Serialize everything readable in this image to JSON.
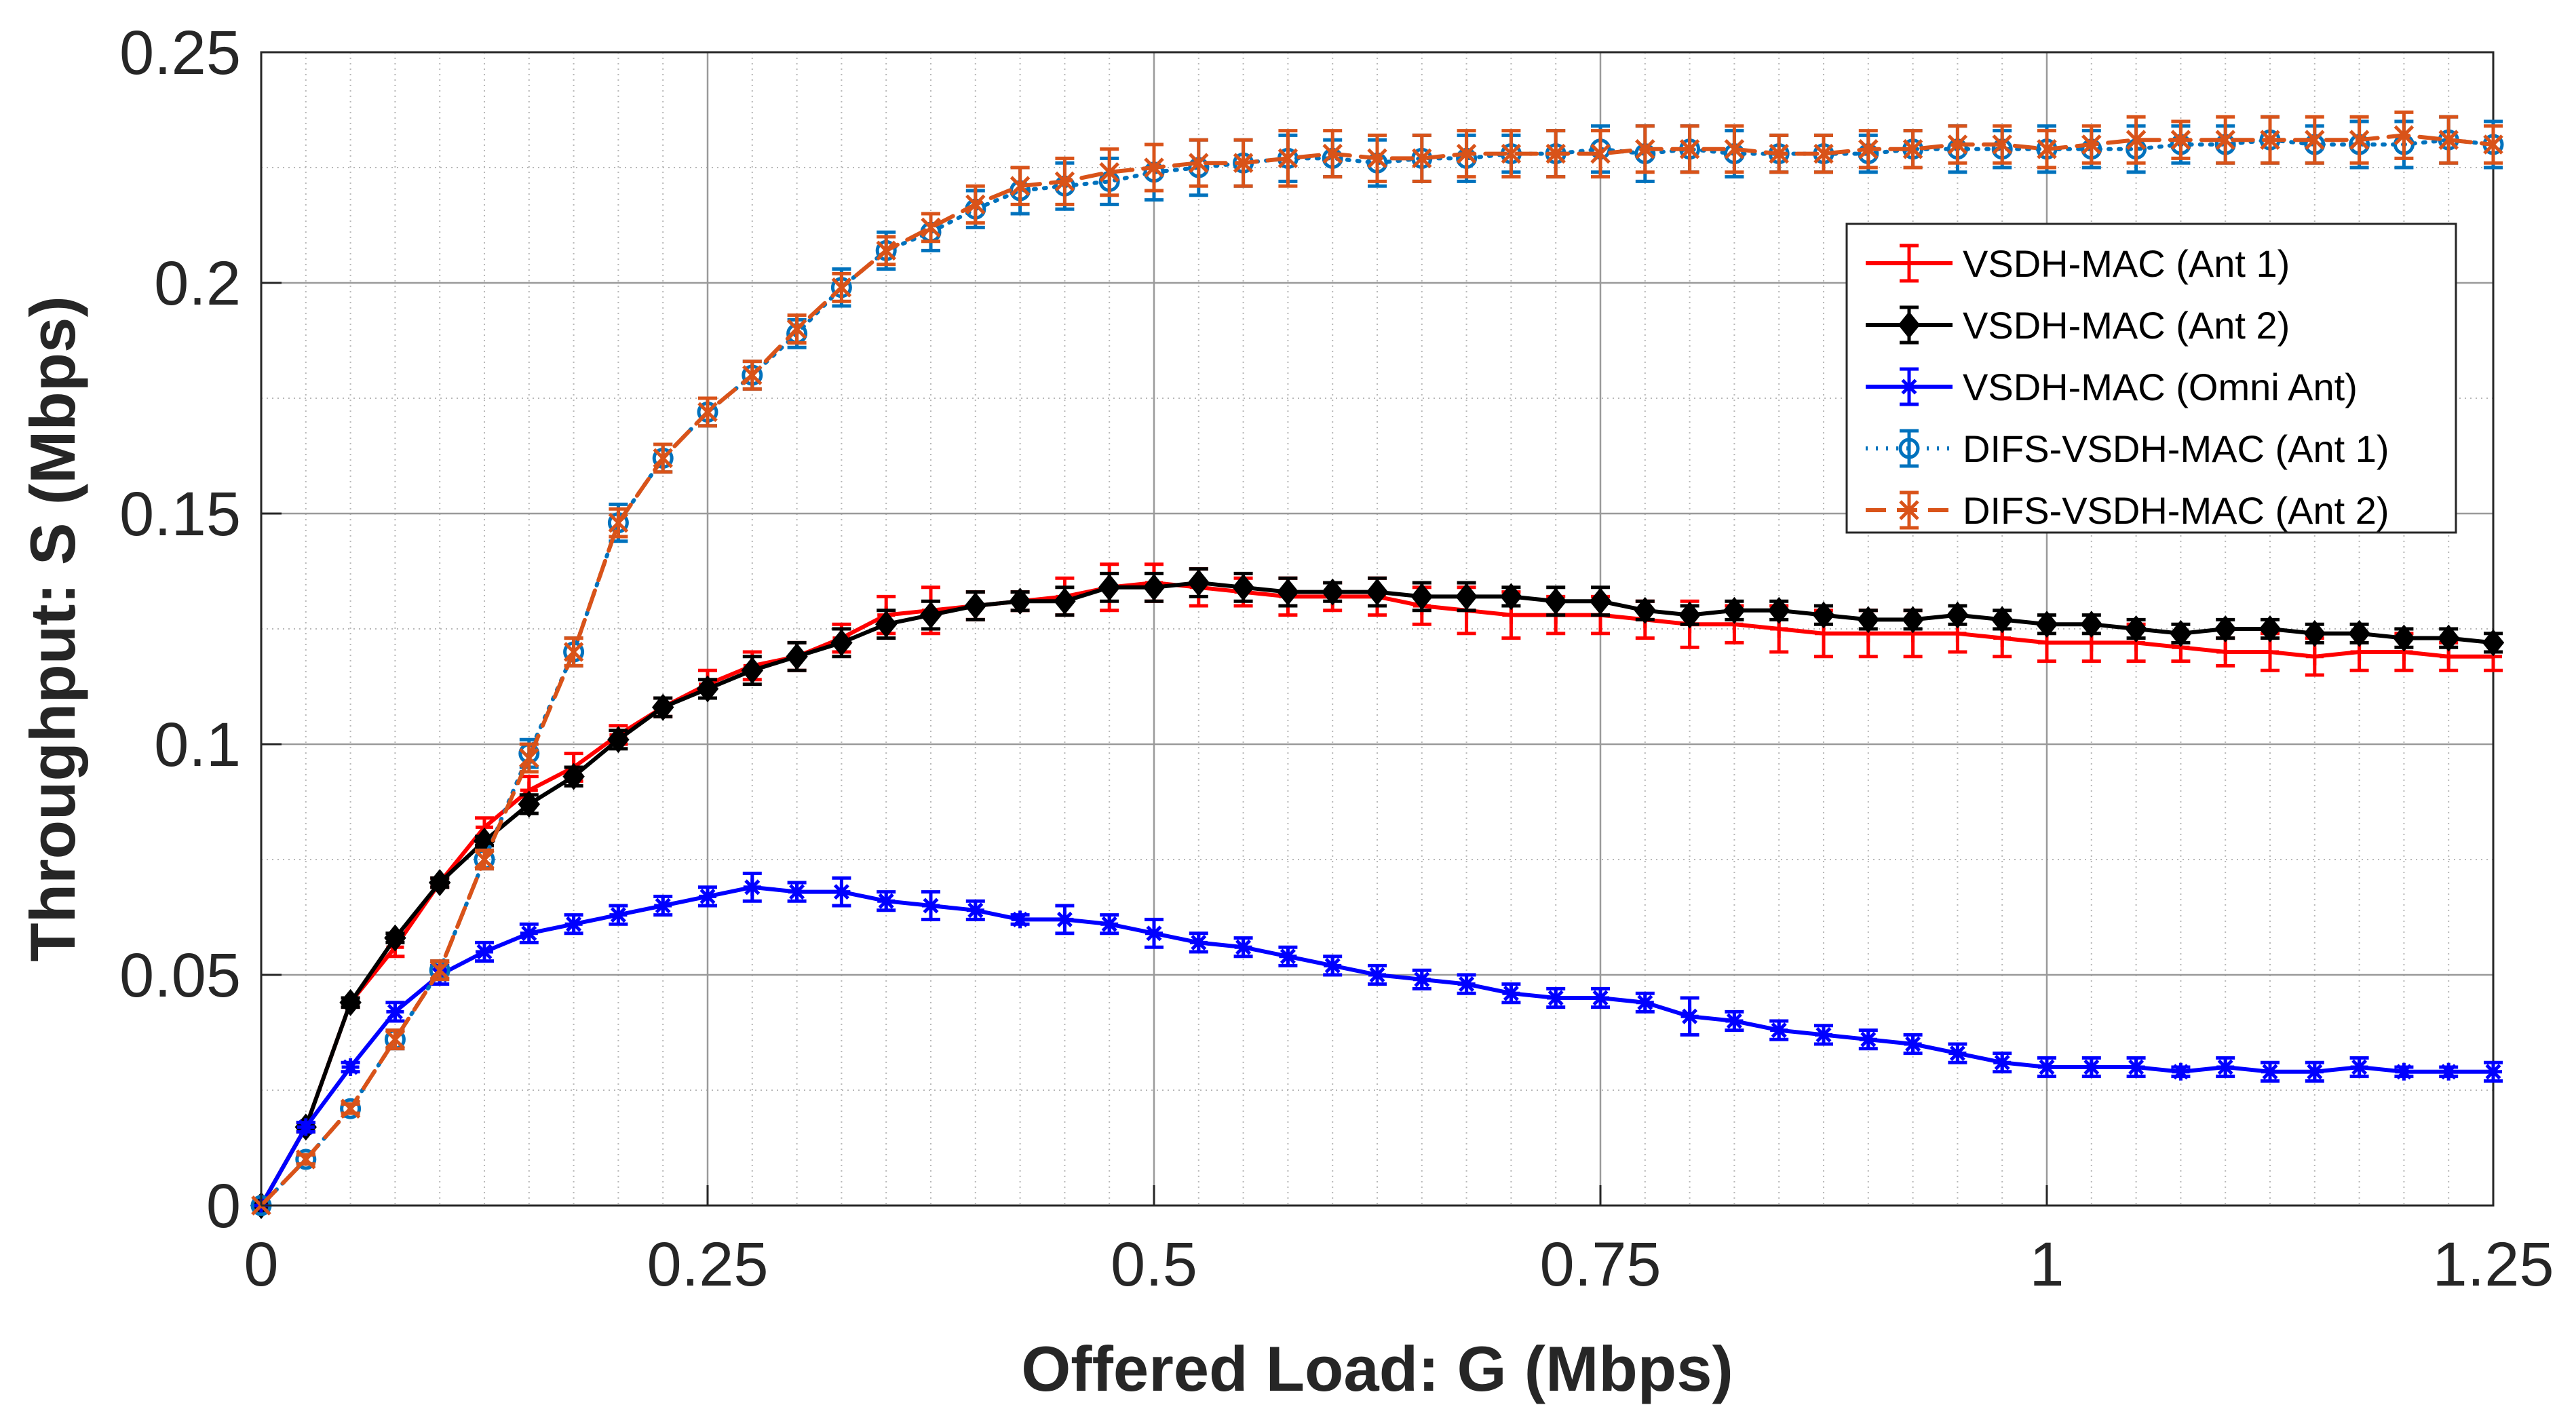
{
  "chart_data": {
    "type": "line",
    "title": "",
    "xlabel": "Offered Load: G (Mbps)",
    "ylabel": "Throughput: S (Mbps)",
    "xlim": [
      0,
      1.25
    ],
    "ylim": [
      0,
      0.25
    ],
    "grid": true,
    "minor_grid": true,
    "xticks": [
      0,
      0.25,
      0.5,
      0.75,
      1,
      1.25
    ],
    "xtick_labels": [
      "0",
      "0.25",
      "0.5",
      "0.75",
      "1",
      "1.25"
    ],
    "yticks": [
      0,
      0.05,
      0.1,
      0.15,
      0.2,
      0.25
    ],
    "ytick_labels": [
      "0",
      "0.05",
      "0.1",
      "0.15",
      "0.2",
      "0.25"
    ],
    "legend_position": "top-right",
    "x": [
      0,
      0.025,
      0.05,
      0.075,
      0.1,
      0.125,
      0.15,
      0.175,
      0.2,
      0.225,
      0.25,
      0.275,
      0.3,
      0.325,
      0.35,
      0.375,
      0.4,
      0.425,
      0.45,
      0.475,
      0.5,
      0.525,
      0.55,
      0.575,
      0.6,
      0.625,
      0.65,
      0.675,
      0.7,
      0.725,
      0.75,
      0.775,
      0.8,
      0.825,
      0.85,
      0.875,
      0.9,
      0.925,
      0.95,
      0.975,
      1.0,
      1.025,
      1.05,
      1.075,
      1.1,
      1.125,
      1.15,
      1.175,
      1.2,
      1.225,
      1.25
    ],
    "series": [
      {
        "name": "VSDH-MAC (Ant 1)",
        "color": "#ff0000",
        "line_style": "solid",
        "marker": "plus",
        "values": [
          0,
          0.017,
          0.044,
          0.056,
          0.07,
          0.082,
          0.09,
          0.095,
          0.102,
          0.108,
          0.113,
          0.117,
          0.119,
          0.123,
          0.128,
          0.129,
          0.13,
          0.131,
          0.132,
          0.134,
          0.135,
          0.134,
          0.133,
          0.132,
          0.132,
          0.132,
          0.13,
          0.129,
          0.128,
          0.128,
          0.128,
          0.127,
          0.126,
          0.126,
          0.125,
          0.124,
          0.124,
          0.124,
          0.124,
          0.123,
          0.122,
          0.122,
          0.122,
          0.121,
          0.12,
          0.12,
          0.119,
          0.12,
          0.12,
          0.119,
          0.119
        ],
        "errors": [
          0,
          0.001,
          0.001,
          0.002,
          0.001,
          0.002,
          0.003,
          0.003,
          0.002,
          0.002,
          0.003,
          0.003,
          0.003,
          0.003,
          0.004,
          0.005,
          0.003,
          0.002,
          0.004,
          0.005,
          0.004,
          0.004,
          0.003,
          0.004,
          0.003,
          0.004,
          0.004,
          0.005,
          0.005,
          0.004,
          0.004,
          0.004,
          0.005,
          0.004,
          0.005,
          0.005,
          0.005,
          0.005,
          0.004,
          0.004,
          0.004,
          0.004,
          0.004,
          0.003,
          0.003,
          0.004,
          0.004,
          0.004,
          0.004,
          0.003,
          0.003
        ]
      },
      {
        "name": "VSDH-MAC (Ant 2)",
        "color": "#000000",
        "line_style": "solid",
        "marker": "diamond",
        "values": [
          0,
          0.017,
          0.044,
          0.058,
          0.07,
          0.079,
          0.087,
          0.093,
          0.101,
          0.108,
          0.112,
          0.116,
          0.119,
          0.122,
          0.126,
          0.128,
          0.13,
          0.131,
          0.131,
          0.134,
          0.134,
          0.135,
          0.134,
          0.133,
          0.133,
          0.133,
          0.132,
          0.132,
          0.132,
          0.131,
          0.131,
          0.129,
          0.128,
          0.129,
          0.129,
          0.128,
          0.127,
          0.127,
          0.128,
          0.127,
          0.126,
          0.126,
          0.125,
          0.124,
          0.125,
          0.125,
          0.124,
          0.124,
          0.123,
          0.123,
          0.122
        ],
        "errors": [
          0,
          0.001,
          0.001,
          0.001,
          0.001,
          0.001,
          0.002,
          0.002,
          0.002,
          0.002,
          0.002,
          0.003,
          0.003,
          0.003,
          0.003,
          0.003,
          0.003,
          0.002,
          0.003,
          0.003,
          0.003,
          0.003,
          0.003,
          0.003,
          0.002,
          0.003,
          0.003,
          0.003,
          0.002,
          0.003,
          0.003,
          0.002,
          0.002,
          0.002,
          0.002,
          0.002,
          0.002,
          0.002,
          0.002,
          0.002,
          0.002,
          0.002,
          0.002,
          0.002,
          0.002,
          0.002,
          0.002,
          0.002,
          0.002,
          0.002,
          0.002
        ]
      },
      {
        "name": "VSDH-MAC (Omni Ant)",
        "color": "#0000ff",
        "line_style": "solid",
        "marker": "star",
        "values": [
          0,
          0.017,
          0.03,
          0.042,
          0.05,
          0.055,
          0.059,
          0.061,
          0.063,
          0.065,
          0.067,
          0.069,
          0.068,
          0.068,
          0.066,
          0.065,
          0.064,
          0.062,
          0.062,
          0.061,
          0.059,
          0.057,
          0.056,
          0.054,
          0.052,
          0.05,
          0.049,
          0.048,
          0.046,
          0.045,
          0.045,
          0.044,
          0.041,
          0.04,
          0.038,
          0.037,
          0.036,
          0.035,
          0.033,
          0.031,
          0.03,
          0.03,
          0.03,
          0.029,
          0.03,
          0.029,
          0.029,
          0.03,
          0.029,
          0.029,
          0.029
        ],
        "errors": [
          0,
          0.001,
          0.001,
          0.002,
          0.002,
          0.002,
          0.002,
          0.002,
          0.002,
          0.002,
          0.002,
          0.003,
          0.002,
          0.003,
          0.002,
          0.003,
          0.002,
          0.001,
          0.003,
          0.002,
          0.003,
          0.002,
          0.002,
          0.002,
          0.002,
          0.002,
          0.002,
          0.002,
          0.002,
          0.002,
          0.002,
          0.002,
          0.004,
          0.002,
          0.002,
          0.002,
          0.002,
          0.002,
          0.002,
          0.002,
          0.002,
          0.002,
          0.002,
          0.001,
          0.002,
          0.002,
          0.002,
          0.002,
          0.001,
          0.001,
          0.002
        ]
      },
      {
        "name": "DIFS-VSDH-MAC (Ant 1)",
        "color": "#0072bd",
        "line_style": "dotted",
        "marker": "circle",
        "values": [
          0,
          0.01,
          0.021,
          0.036,
          0.051,
          0.075,
          0.098,
          0.12,
          0.148,
          0.162,
          0.172,
          0.18,
          0.189,
          0.199,
          0.207,
          0.211,
          0.216,
          0.22,
          0.221,
          0.222,
          0.224,
          0.225,
          0.226,
          0.227,
          0.227,
          0.226,
          0.227,
          0.227,
          0.228,
          0.228,
          0.229,
          0.228,
          0.229,
          0.228,
          0.228,
          0.228,
          0.228,
          0.229,
          0.229,
          0.229,
          0.229,
          0.229,
          0.229,
          0.23,
          0.23,
          0.231,
          0.23,
          0.23,
          0.23,
          0.231,
          0.23
        ],
        "errors": [
          0,
          0.001,
          0.001,
          0.002,
          0.002,
          0.002,
          0.003,
          0.003,
          0.004,
          0.003,
          0.003,
          0.003,
          0.003,
          0.004,
          0.004,
          0.004,
          0.004,
          0.005,
          0.005,
          0.005,
          0.006,
          0.006,
          0.005,
          0.005,
          0.004,
          0.005,
          0.005,
          0.005,
          0.004,
          0.005,
          0.005,
          0.006,
          0.005,
          0.005,
          0.004,
          0.004,
          0.004,
          0.004,
          0.005,
          0.004,
          0.005,
          0.004,
          0.005,
          0.004,
          0.004,
          0.005,
          0.004,
          0.005,
          0.005,
          0.005,
          0.005
        ]
      },
      {
        "name": "DIFS-VSDH-MAC (Ant 2)",
        "color": "#d95319",
        "line_style": "dashed",
        "marker": "x",
        "values": [
          0,
          0.01,
          0.021,
          0.036,
          0.051,
          0.075,
          0.097,
          0.12,
          0.148,
          0.162,
          0.172,
          0.18,
          0.19,
          0.199,
          0.207,
          0.212,
          0.217,
          0.221,
          0.222,
          0.224,
          0.225,
          0.226,
          0.226,
          0.227,
          0.228,
          0.227,
          0.227,
          0.228,
          0.228,
          0.228,
          0.228,
          0.229,
          0.229,
          0.229,
          0.228,
          0.228,
          0.229,
          0.229,
          0.23,
          0.23,
          0.229,
          0.23,
          0.231,
          0.231,
          0.231,
          0.231,
          0.231,
          0.231,
          0.232,
          0.231,
          0.23
        ],
        "errors": [
          0,
          0.001,
          0.001,
          0.002,
          0.002,
          0.002,
          0.003,
          0.003,
          0.003,
          0.003,
          0.003,
          0.003,
          0.003,
          0.003,
          0.003,
          0.003,
          0.004,
          0.004,
          0.005,
          0.005,
          0.005,
          0.005,
          0.005,
          0.006,
          0.005,
          0.005,
          0.005,
          0.005,
          0.005,
          0.005,
          0.005,
          0.005,
          0.005,
          0.005,
          0.004,
          0.004,
          0.004,
          0.004,
          0.004,
          0.004,
          0.004,
          0.004,
          0.005,
          0.004,
          0.005,
          0.005,
          0.005,
          0.005,
          0.005,
          0.005,
          0.004
        ]
      }
    ]
  }
}
